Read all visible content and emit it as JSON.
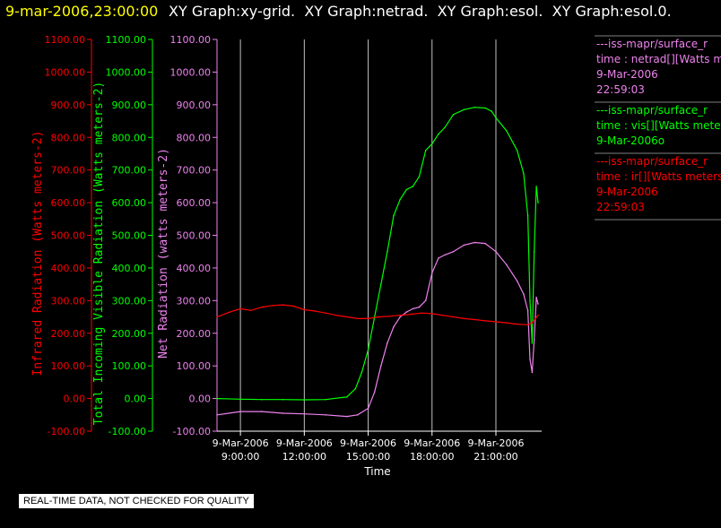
{
  "header": {
    "date_label": "9-mar-2006,23:00:00",
    "graph_titles": "XY Graph:xy-grid.  XY Graph:netrad.  XY Graph:esol.  XY Graph:esol.0."
  },
  "note": "REAL-TIME DATA, NOT CHECKED FOR QUALITY",
  "colors": {
    "ir": "#ff0000",
    "vis": "#00ff00",
    "net": "#ee82ee",
    "grid": "#c0c0c0",
    "axis": "#ffffff"
  },
  "chart_data": {
    "type": "line",
    "xlabel": "Time",
    "x_ticks": [
      {
        "hour": 9,
        "date": "9-Mar-2006",
        "time": "9:00:00"
      },
      {
        "hour": 12,
        "date": "9-Mar-2006",
        "time": "12:00:00"
      },
      {
        "hour": 15,
        "date": "9-Mar-2006",
        "time": "15:00:00"
      },
      {
        "hour": 18,
        "date": "9-Mar-2006",
        "time": "18:00:00"
      },
      {
        "hour": 21,
        "date": "9-Mar-2006",
        "time": "21:00:00"
      }
    ],
    "xlim": [
      7.9,
      22.98
    ],
    "ylim": [
      -100,
      1100
    ],
    "y_ticks": [
      "-100.00",
      "0.00",
      "100.00",
      "200.00",
      "300.00",
      "400.00",
      "500.00",
      "600.00",
      "700.00",
      "800.00",
      "900.00",
      "1000.00",
      "1100.00"
    ],
    "y_values": [
      -100,
      0,
      100,
      200,
      300,
      400,
      500,
      600,
      700,
      800,
      900,
      1000,
      1100
    ],
    "grid": "vertical",
    "axes": [
      {
        "key": "ir",
        "label": "Infrared Radiation (Watts meters-2)"
      },
      {
        "key": "vis",
        "label": "Total Incoming Visible Radiation (Watts meters-2)"
      },
      {
        "key": "net",
        "label": "Net Radiation (watts meters-2)"
      }
    ],
    "series": [
      {
        "key": "ir",
        "x": [
          7.9,
          8.5,
          9.0,
          9.5,
          10.0,
          10.5,
          11.0,
          11.5,
          12.0,
          12.5,
          13.0,
          13.5,
          14.0,
          14.5,
          15.0,
          15.5,
          16.0,
          16.5,
          17.0,
          17.5,
          18.0,
          18.5,
          19.0,
          19.5,
          20.0,
          20.5,
          21.0,
          21.5,
          22.0,
          22.5,
          22.7,
          22.98
        ],
        "y": [
          250,
          265,
          275,
          270,
          280,
          285,
          287,
          283,
          272,
          268,
          262,
          255,
          250,
          245,
          245,
          250,
          252,
          255,
          258,
          262,
          260,
          255,
          250,
          245,
          242,
          238,
          235,
          232,
          228,
          226,
          232,
          255
        ]
      },
      {
        "key": "vis",
        "x": [
          7.9,
          9.0,
          10.0,
          11.0,
          12.0,
          13.0,
          14.0,
          14.4,
          14.7,
          15.0,
          15.3,
          15.6,
          15.9,
          16.2,
          16.5,
          16.8,
          17.1,
          17.4,
          17.7,
          18.0,
          18.3,
          18.6,
          19.0,
          19.5,
          20.0,
          20.5,
          20.8,
          21.0,
          21.5,
          22.0,
          22.3,
          22.5,
          22.6,
          22.7,
          22.8,
          22.9,
          22.98
        ],
        "y": [
          0,
          -2,
          -3,
          -3,
          -4,
          -3,
          5,
          30,
          80,
          150,
          250,
          350,
          450,
          560,
          610,
          640,
          650,
          680,
          760,
          780,
          810,
          830,
          870,
          885,
          892,
          890,
          880,
          860,
          820,
          760,
          690,
          560,
          300,
          170,
          450,
          650,
          600
        ]
      },
      {
        "key": "net",
        "x": [
          7.9,
          9.0,
          10.0,
          11.0,
          12.0,
          13.0,
          14.0,
          14.5,
          15.0,
          15.3,
          15.6,
          15.9,
          16.2,
          16.5,
          16.8,
          17.1,
          17.4,
          17.7,
          18.0,
          18.3,
          18.6,
          19.0,
          19.5,
          20.0,
          20.5,
          21.0,
          21.5,
          22.0,
          22.3,
          22.5,
          22.6,
          22.7,
          22.8,
          22.9,
          22.98
        ],
        "y": [
          -50,
          -40,
          -40,
          -45,
          -47,
          -50,
          -55,
          -50,
          -30,
          20,
          100,
          170,
          220,
          250,
          265,
          275,
          280,
          300,
          385,
          430,
          440,
          450,
          470,
          478,
          475,
          450,
          410,
          360,
          320,
          270,
          120,
          80,
          180,
          310,
          290
        ]
      }
    ]
  },
  "legend": [
    {
      "color_key": "net",
      "lines": [
        "---iss-mapr/surface_r",
        "time : netrad[][Watts m",
        "9-Mar-2006",
        "22:59:03"
      ]
    },
    {
      "color_key": "vis",
      "lines": [
        "---iss-mapr/surface_r",
        "time : vis[][Watts mete",
        "9-Mar-2006o"
      ]
    },
    {
      "color_key": "ir",
      "lines": [
        "---iss-mapr/surface_r",
        "time : ir[][Watts meters",
        "9-Mar-2006",
        "22:59:03"
      ]
    }
  ]
}
